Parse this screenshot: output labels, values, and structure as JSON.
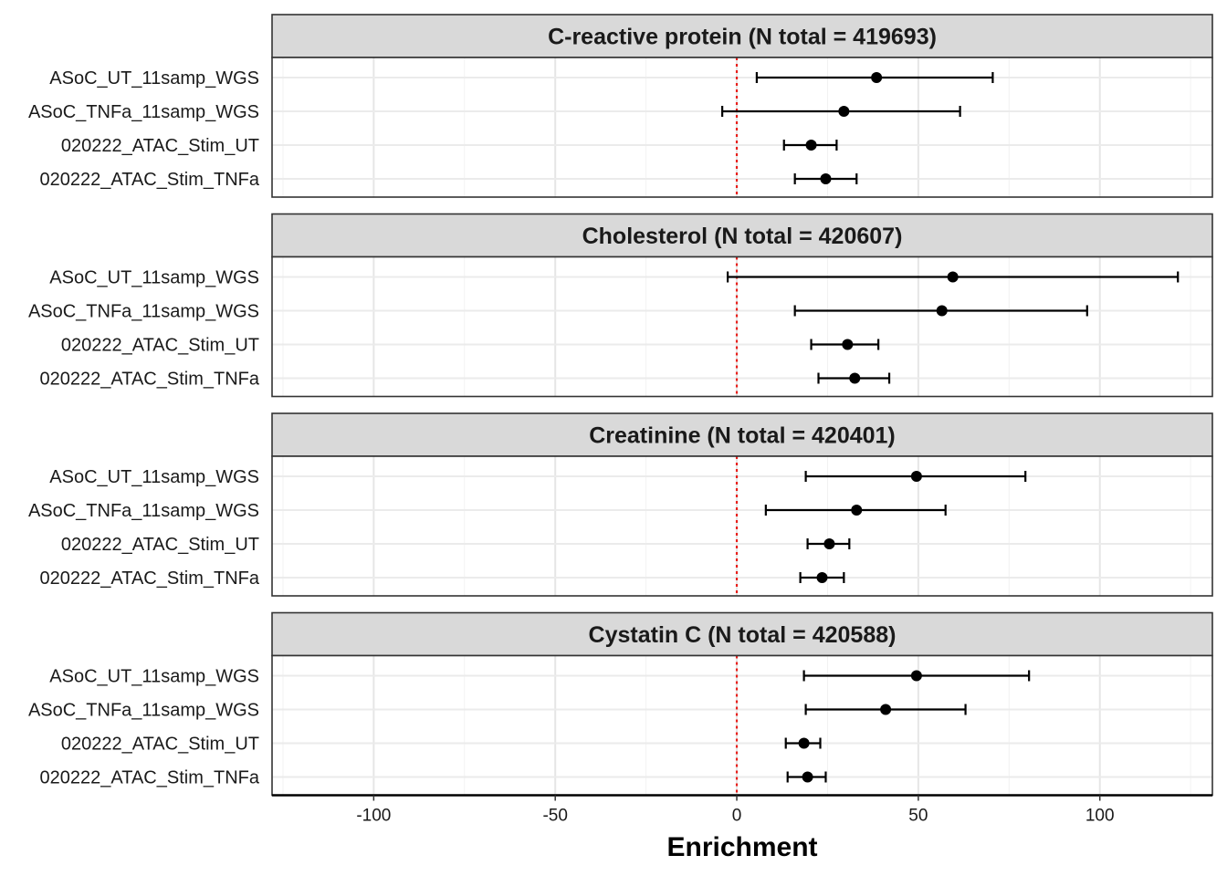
{
  "chart_data": {
    "type": "forest",
    "xlabel": "Enrichment",
    "xlim": [
      -128,
      131
    ],
    "xticks": [
      -100,
      -50,
      0,
      50,
      100
    ],
    "reference_line": {
      "x": 0,
      "style": "dotted",
      "color": "#e8201c"
    },
    "grid": true,
    "categories": [
      "ASoC_UT_11samp_WGS",
      "ASoC_TNFa_11samp_WGS",
      "020222_ATAC_Stim_UT",
      "020222_ATAC_Stim_TNFa"
    ],
    "panels": [
      {
        "title": "C-reactive protein (N total = 419693)",
        "points": [
          {
            "label": "ASoC_UT_11samp_WGS",
            "estimate": 38.5,
            "lower": 5.5,
            "upper": 70.5
          },
          {
            "label": "ASoC_TNFa_11samp_WGS",
            "estimate": 29.5,
            "lower": -4,
            "upper": 61.5
          },
          {
            "label": "020222_ATAC_Stim_UT",
            "estimate": 20.5,
            "lower": 13,
            "upper": 27.5
          },
          {
            "label": "020222_ATAC_Stim_TNFa",
            "estimate": 24.5,
            "lower": 16,
            "upper": 33
          }
        ]
      },
      {
        "title": "Cholesterol (N total = 420607)",
        "points": [
          {
            "label": "ASoC_UT_11samp_WGS",
            "estimate": 59.5,
            "lower": -2.5,
            "upper": 121.5
          },
          {
            "label": "ASoC_TNFa_11samp_WGS",
            "estimate": 56.5,
            "lower": 16,
            "upper": 96.5
          },
          {
            "label": "020222_ATAC_Stim_UT",
            "estimate": 30.5,
            "lower": 20.5,
            "upper": 39
          },
          {
            "label": "020222_ATAC_Stim_TNFa",
            "estimate": 32.5,
            "lower": 22.5,
            "upper": 42
          }
        ]
      },
      {
        "title": "Creatinine (N total = 420401)",
        "points": [
          {
            "label": "ASoC_UT_11samp_WGS",
            "estimate": 49.5,
            "lower": 19,
            "upper": 79.5
          },
          {
            "label": "ASoC_TNFa_11samp_WGS",
            "estimate": 33,
            "lower": 8,
            "upper": 57.5
          },
          {
            "label": "020222_ATAC_Stim_UT",
            "estimate": 25.5,
            "lower": 19.5,
            "upper": 31
          },
          {
            "label": "020222_ATAC_Stim_TNFa",
            "estimate": 23.5,
            "lower": 17.5,
            "upper": 29.5
          }
        ]
      },
      {
        "title": "Cystatin C (N total = 420588)",
        "points": [
          {
            "label": "ASoC_UT_11samp_WGS",
            "estimate": 49.5,
            "lower": 18.5,
            "upper": 80.5
          },
          {
            "label": "ASoC_TNFa_11samp_WGS",
            "estimate": 41,
            "lower": 19,
            "upper": 63
          },
          {
            "label": "020222_ATAC_Stim_UT",
            "estimate": 18.5,
            "lower": 13.5,
            "upper": 23
          },
          {
            "label": "020222_ATAC_Stim_TNFa",
            "estimate": 19.5,
            "lower": 14,
            "upper": 24.5
          }
        ]
      }
    ]
  }
}
